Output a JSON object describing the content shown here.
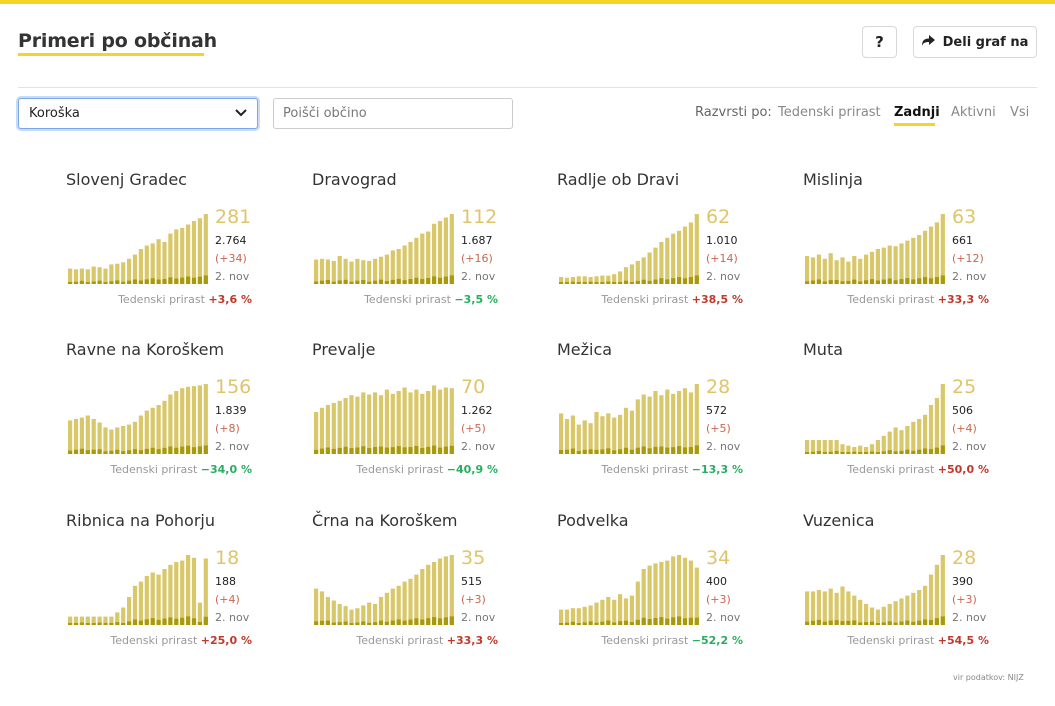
{
  "header": {
    "title": "Primeri po občinah",
    "help_label": "?",
    "share_label": "Deli graf na"
  },
  "filters": {
    "region_selected": "Koroška",
    "search_placeholder": "Poišči občino"
  },
  "sort": {
    "label": "Razvrsti po:",
    "options": [
      "Tedenski prirast",
      "Zadnji",
      "Aktivni",
      "Vsi"
    ],
    "active": "Zadnji"
  },
  "colors": {
    "accent": "#f5d327",
    "bar_light": "#d9c86a",
    "bar_dark": "#a89a0c",
    "increase": "#c0392b",
    "decrease": "#27ae60"
  },
  "growth_label": "Tedenski prirast",
  "source": "vir podatkov: NIJZ",
  "chart_data": [
    {
      "type": "bar",
      "name": "Slovenj Gradec",
      "value": "281",
      "total": "2.764",
      "delta": "(+34)",
      "date": "2. nov",
      "growth": "+3,6 %",
      "trend": "up",
      "values": [
        0.22,
        0.21,
        0.22,
        0.21,
        0.25,
        0.24,
        0.22,
        0.28,
        0.29,
        0.31,
        0.36,
        0.42,
        0.5,
        0.55,
        0.58,
        0.64,
        0.6,
        0.72,
        0.78,
        0.8,
        0.85,
        0.9,
        0.94,
        1.0
      ]
    },
    {
      "type": "bar",
      "name": "Dravograd",
      "value": "112",
      "total": "1.687",
      "delta": "(+16)",
      "date": "2. nov",
      "growth": "−3,5 %",
      "trend": "down",
      "values": [
        0.35,
        0.36,
        0.35,
        0.33,
        0.4,
        0.36,
        0.32,
        0.36,
        0.34,
        0.33,
        0.36,
        0.39,
        0.42,
        0.48,
        0.5,
        0.55,
        0.6,
        0.66,
        0.72,
        0.75,
        0.86,
        0.9,
        0.95,
        1.0
      ]
    },
    {
      "type": "bar",
      "name": "Radlje ob Dravi",
      "value": "62",
      "total": "1.010",
      "delta": "(+14)",
      "date": "2. nov",
      "growth": "+38,5 %",
      "trend": "up",
      "values": [
        0.1,
        0.09,
        0.1,
        0.11,
        0.11,
        0.1,
        0.11,
        0.12,
        0.12,
        0.14,
        0.18,
        0.24,
        0.28,
        0.33,
        0.38,
        0.45,
        0.52,
        0.6,
        0.66,
        0.72,
        0.76,
        0.82,
        0.88,
        1.0
      ]
    },
    {
      "type": "bar",
      "name": "Mislinja",
      "value": "63",
      "total": "661",
      "delta": "(+12)",
      "date": "2. nov",
      "growth": "+33,3 %",
      "trend": "up",
      "values": [
        0.4,
        0.38,
        0.42,
        0.36,
        0.44,
        0.34,
        0.38,
        0.32,
        0.4,
        0.36,
        0.42,
        0.46,
        0.5,
        0.52,
        0.55,
        0.54,
        0.58,
        0.62,
        0.66,
        0.7,
        0.76,
        0.82,
        0.88,
        1.0
      ]
    },
    {
      "type": "bar",
      "name": "Ravne na Koroškem",
      "value": "156",
      "total": "1.839",
      "delta": "(+8)",
      "date": "2. nov",
      "growth": "−34,0 %",
      "trend": "down",
      "values": [
        0.48,
        0.5,
        0.52,
        0.55,
        0.5,
        0.45,
        0.38,
        0.35,
        0.38,
        0.4,
        0.42,
        0.46,
        0.55,
        0.62,
        0.66,
        0.7,
        0.76,
        0.85,
        0.9,
        0.94,
        0.96,
        0.97,
        0.98,
        1.0
      ]
    },
    {
      "type": "bar",
      "name": "Prevalje",
      "value": "70",
      "total": "1.262",
      "delta": "(+5)",
      "date": "2. nov",
      "growth": "−40,9 %",
      "trend": "down",
      "values": [
        0.6,
        0.66,
        0.7,
        0.73,
        0.76,
        0.8,
        0.84,
        0.82,
        0.88,
        0.85,
        0.88,
        0.84,
        0.92,
        0.86,
        0.9,
        0.95,
        0.88,
        0.92,
        0.86,
        0.9,
        0.98,
        0.92,
        0.95,
        0.94
      ]
    },
    {
      "type": "bar",
      "name": "Mežica",
      "value": "28",
      "total": "572",
      "delta": "(+5)",
      "date": "2. nov",
      "growth": "−13,3 %",
      "trend": "down",
      "values": [
        0.58,
        0.5,
        0.55,
        0.42,
        0.48,
        0.44,
        0.6,
        0.54,
        0.58,
        0.52,
        0.56,
        0.66,
        0.62,
        0.78,
        0.85,
        0.82,
        0.9,
        0.84,
        0.92,
        0.86,
        0.9,
        0.94,
        0.88,
        1.0
      ]
    },
    {
      "type": "bar",
      "name": "Muta",
      "value": "25",
      "total": "506",
      "delta": "(+4)",
      "date": "2. nov",
      "growth": "+50,0 %",
      "trend": "up",
      "values": [
        0.2,
        0.2,
        0.2,
        0.2,
        0.2,
        0.2,
        0.14,
        0.12,
        0.1,
        0.12,
        0.1,
        0.14,
        0.2,
        0.26,
        0.32,
        0.38,
        0.34,
        0.4,
        0.46,
        0.5,
        0.56,
        0.7,
        0.8,
        1.0
      ]
    },
    {
      "type": "bar",
      "name": "Ribnica na Pohorju",
      "value": "18",
      "total": "188",
      "delta": "(+4)",
      "date": "2. nov",
      "growth": "+25,0 %",
      "trend": "up",
      "values": [
        0.12,
        0.12,
        0.12,
        0.12,
        0.12,
        0.12,
        0.12,
        0.12,
        0.18,
        0.25,
        0.4,
        0.56,
        0.62,
        0.7,
        0.75,
        0.72,
        0.8,
        0.86,
        0.9,
        0.92,
        1.0,
        0.96,
        0.32,
        0.95
      ]
    },
    {
      "type": "bar",
      "name": "Črna na Koroškem",
      "value": "35",
      "total": "515",
      "delta": "(+3)",
      "date": "2. nov",
      "growth": "+33,3 %",
      "trend": "up",
      "values": [
        0.52,
        0.48,
        0.4,
        0.35,
        0.3,
        0.27,
        0.22,
        0.24,
        0.28,
        0.32,
        0.3,
        0.4,
        0.46,
        0.52,
        0.56,
        0.62,
        0.66,
        0.72,
        0.8,
        0.86,
        0.9,
        0.95,
        0.98,
        1.0
      ]
    },
    {
      "type": "bar",
      "name": "Podvelka",
      "value": "34",
      "total": "400",
      "delta": "(+3)",
      "date": "2. nov",
      "growth": "−52,2 %",
      "trend": "down",
      "values": [
        0.22,
        0.22,
        0.24,
        0.24,
        0.26,
        0.28,
        0.32,
        0.36,
        0.4,
        0.36,
        0.44,
        0.38,
        0.42,
        0.62,
        0.8,
        0.85,
        0.88,
        0.9,
        0.92,
        0.98,
        1.0,
        0.96,
        0.92,
        0.82
      ]
    },
    {
      "type": "bar",
      "name": "Vuzenica",
      "value": "28",
      "total": "390",
      "delta": "(+3)",
      "date": "2. nov",
      "growth": "+54,5 %",
      "trend": "up",
      "values": [
        0.48,
        0.48,
        0.5,
        0.48,
        0.52,
        0.46,
        0.55,
        0.48,
        0.42,
        0.36,
        0.3,
        0.25,
        0.22,
        0.26,
        0.3,
        0.34,
        0.38,
        0.42,
        0.46,
        0.5,
        0.56,
        0.72,
        0.86,
        1.0
      ]
    }
  ]
}
